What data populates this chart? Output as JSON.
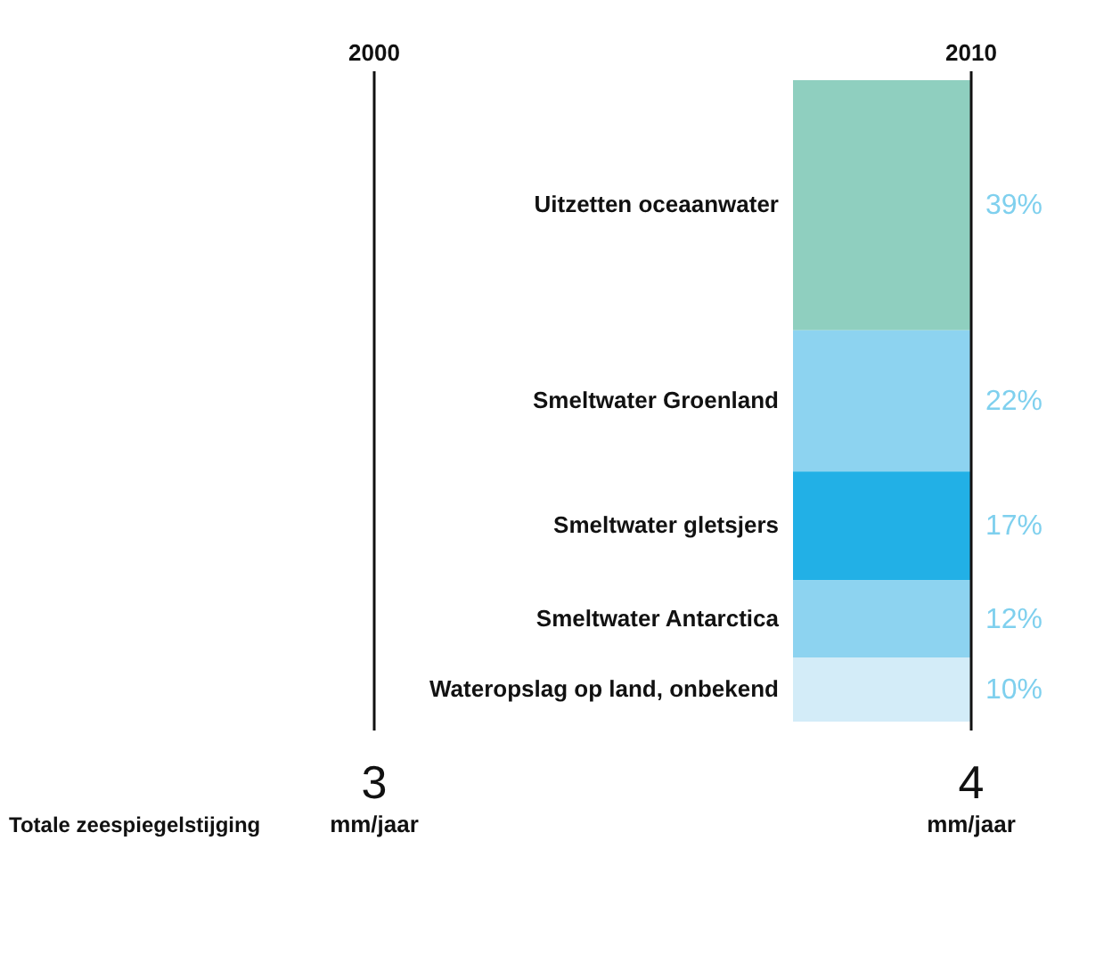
{
  "chart_data": {
    "type": "other",
    "categories": [
      "Uitzetten oceaanwater",
      "Smeltwater Groenland",
      "Smeltwater gletsjers",
      "Smeltwater Antarctica",
      "Wateropslag op land, onbekend"
    ],
    "values": [
      39,
      22,
      17,
      12,
      10
    ],
    "value_labels": [
      "39%",
      "22%",
      "17%",
      "12%",
      "10%"
    ],
    "colors": [
      "#8fcfbf",
      "#8dd3f0",
      "#22b0e6",
      "#8dd3f0",
      "#d3ecf8"
    ],
    "annotations": [
      "2000",
      "3",
      "mm/jaar",
      "2010",
      "4",
      "mm/jaar",
      "Totale zeespiegelstijging"
    ]
  }
}
